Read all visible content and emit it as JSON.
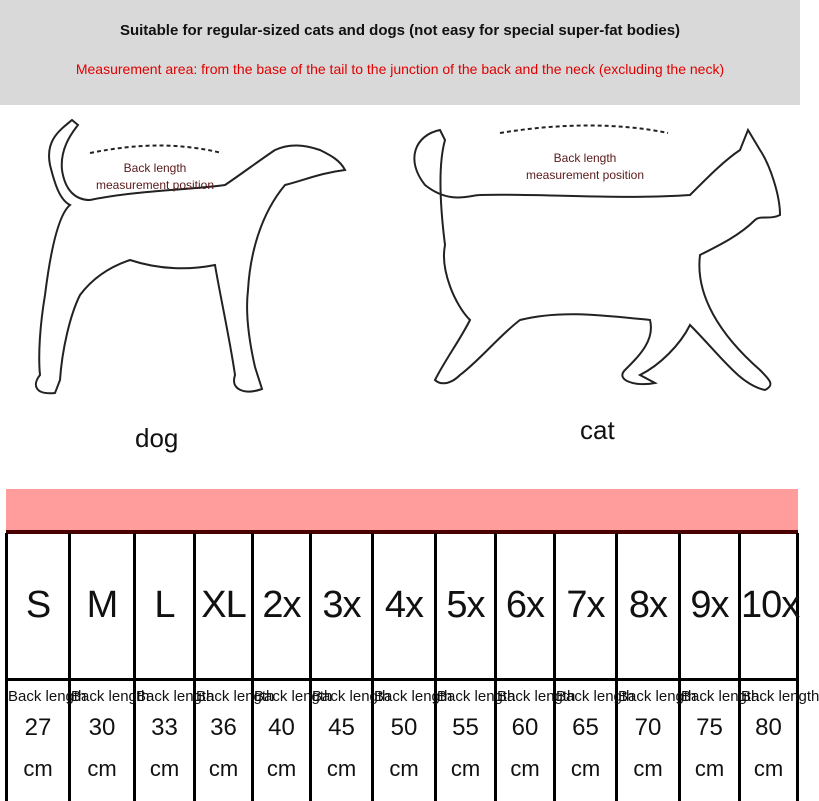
{
  "header": {
    "title": "Suitable for regular-sized cats and dogs (not easy for special super-fat bodies)",
    "subtitle": "Measurement area: from the base of the tail to the junction of the back and the neck (excluding the neck)"
  },
  "dog": {
    "name": "dog",
    "label_line1": "Back length",
    "label_line2": "measurement position"
  },
  "cat": {
    "name": "cat",
    "label_line1": "Back length",
    "label_line2": "measurement position"
  },
  "colors": {
    "header_bar": "#d9d9d9",
    "subtitle": "#e00000",
    "table_band": "#ff9c9c"
  },
  "table": {
    "row_label": "Back length",
    "unit": "cm",
    "sizes": [
      {
        "size": "S",
        "back_length": "27"
      },
      {
        "size": "M",
        "back_length": "30"
      },
      {
        "size": "L",
        "back_length": "33"
      },
      {
        "size": "XL",
        "back_length": "36"
      },
      {
        "size": "2x",
        "back_length": "40"
      },
      {
        "size": "3x",
        "back_length": "45"
      },
      {
        "size": "4x",
        "back_length": "50"
      },
      {
        "size": "5x",
        "back_length": "55"
      },
      {
        "size": "6x",
        "back_length": "60"
      },
      {
        "size": "7x",
        "back_length": "65"
      },
      {
        "size": "8x",
        "back_length": "70"
      },
      {
        "size": "9x",
        "back_length": "75"
      },
      {
        "size": "10x",
        "back_length": "80"
      }
    ]
  }
}
